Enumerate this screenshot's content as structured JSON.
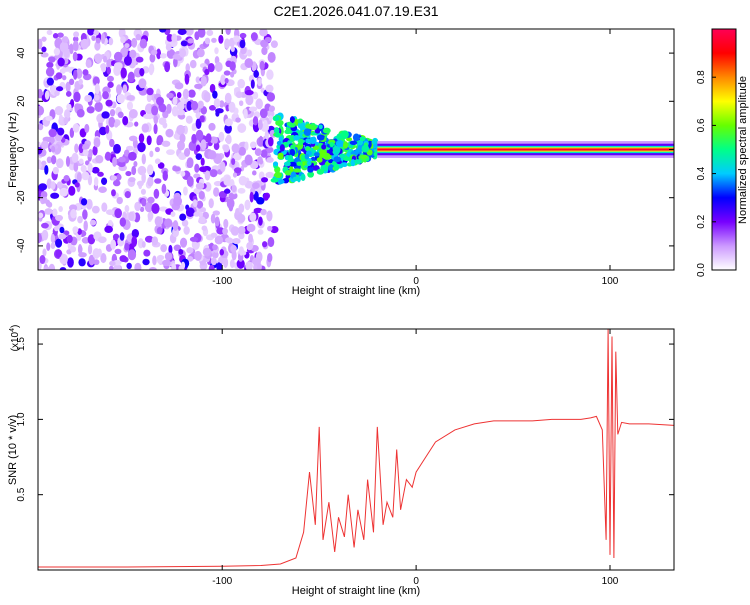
{
  "title": "C2E1.2026.041.07.19.E31",
  "chart_data": [
    {
      "type": "heatmap",
      "name": "spectrogram",
      "xlabel": "Height of straight line (km)",
      "ylabel": "Frequency (Hz)",
      "xlim": [
        -195,
        133
      ],
      "ylim": [
        -50,
        50
      ],
      "x_ticks": [
        -100,
        0,
        100
      ],
      "x_tick_labels": [
        "-100",
        "0",
        "100"
      ],
      "y_ticks": [
        -40,
        -20,
        0,
        20,
        40
      ],
      "y_tick_labels": [
        "-40",
        "-20",
        "0",
        "20",
        "40"
      ],
      "colorbar": {
        "label": "Normalized spectral amplitude",
        "range": [
          0,
          1
        ],
        "ticks": [
          0.0,
          0.2,
          0.4,
          0.6,
          0.8
        ],
        "tick_labels": [
          "0.0",
          "0.2",
          "0.4",
          "0.6",
          "0.8"
        ],
        "colors": [
          "#ffffff",
          "#cc99ff",
          "#7700ff",
          "#0000ff",
          "#00ccff",
          "#00ff88",
          "#66ff00",
          "#ffff00",
          "#ff8800",
          "#ff0000",
          "#ff0055"
        ]
      },
      "regions": [
        {
          "x_from": -195,
          "x_to": -73,
          "description": "broadband noise, weak amplitude (0.1-0.3) across all frequencies"
        },
        {
          "x_from": -73,
          "x_to": -20,
          "description": "transition, energy concentrated near 0 Hz, amplitude 0.3-0.6"
        },
        {
          "x_from": -20,
          "x_to": 133,
          "description": "narrow band centered near 0 Hz, peak amplitude ~1.0"
        }
      ]
    },
    {
      "type": "line",
      "name": "snr",
      "xlabel": "Height of straight line (km)",
      "ylabel": "SNR (10 * v/v)",
      "y_multiplier_label": "(x10",
      "y_multiplier_exp": "4",
      "y_multiplier_close": ")",
      "xlim": [
        -195,
        133
      ],
      "ylim": [
        0,
        16000
      ],
      "x_ticks": [
        -100,
        0,
        100
      ],
      "x_tick_labels": [
        "-100",
        "0",
        "100"
      ],
      "y_ticks": [
        5000,
        10000,
        15000
      ],
      "y_tick_labels": [
        "0.5",
        "1.0",
        "1.5"
      ],
      "color": "#ee3333",
      "series": [
        {
          "name": "SNR",
          "x": [
            -195,
            -150,
            -100,
            -80,
            -70,
            -62,
            -58,
            -55,
            -52,
            -50,
            -48,
            -45,
            -42,
            -40,
            -37,
            -35,
            -32,
            -30,
            -27,
            -25,
            -22,
            -20,
            -17,
            -15,
            -12,
            -10,
            -8,
            -5,
            -2,
            0,
            5,
            10,
            20,
            30,
            40,
            50,
            60,
            70,
            80,
            85,
            90,
            93,
            96,
            98,
            99,
            100,
            101,
            102,
            103,
            104,
            106,
            110,
            120,
            133
          ],
          "y": [
            200,
            200,
            250,
            300,
            400,
            800,
            2500,
            6500,
            3000,
            9500,
            2000,
            4500,
            1200,
            3500,
            2200,
            5000,
            1500,
            4000,
            2000,
            6000,
            2500,
            9500,
            3000,
            4500,
            3500,
            8000,
            4000,
            6000,
            5500,
            6500,
            7500,
            8500,
            9300,
            9700,
            9900,
            9900,
            9900,
            10000,
            10000,
            10000,
            10100,
            10200,
            9300,
            2000,
            16000,
            1000,
            15500,
            800,
            14500,
            9000,
            9800,
            9700,
            9700,
            9600
          ]
        }
      ]
    }
  ]
}
